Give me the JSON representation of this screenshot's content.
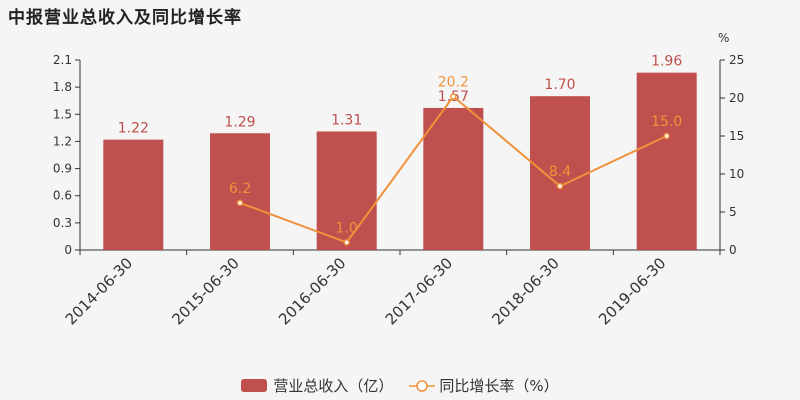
{
  "title": "中报营业总收入及同比增长率",
  "colors": {
    "bar": "#c0504d",
    "line": "#f0913b",
    "axis": "#333333",
    "background": "#f5f5f5"
  },
  "chart_data": {
    "type": "bar",
    "categories": [
      "2014-06-30",
      "2015-06-30",
      "2016-06-30",
      "2017-06-30",
      "2018-06-30",
      "2019-06-30"
    ],
    "series": [
      {
        "name": "营业总收入（亿）",
        "type": "bar",
        "axis": "left",
        "values": [
          1.22,
          1.29,
          1.31,
          1.57,
          1.7,
          1.96
        ]
      },
      {
        "name": "同比增长率（%）",
        "type": "line",
        "axis": "right",
        "values": [
          null,
          6.2,
          1.0,
          20.2,
          8.4,
          15.0
        ]
      }
    ],
    "bar_labels": [
      "1.22",
      "1.29",
      "1.31",
      "1.57",
      "1.70",
      "1.96"
    ],
    "line_labels": [
      "",
      "6.2",
      "1.0",
      "20.2",
      "8.4",
      "15.0"
    ],
    "y_left": {
      "ylim": [
        0,
        2.1
      ],
      "ticks": [
        "0",
        "0.3",
        "0.6",
        "0.9",
        "1.2",
        "1.5",
        "1.8",
        "2.1"
      ]
    },
    "y_right": {
      "ylim": [
        0,
        25
      ],
      "ticks": [
        "0",
        "5",
        "10",
        "15",
        "20",
        "25"
      ],
      "unit": "%"
    },
    "legend_position": "bottom",
    "grid": false
  }
}
